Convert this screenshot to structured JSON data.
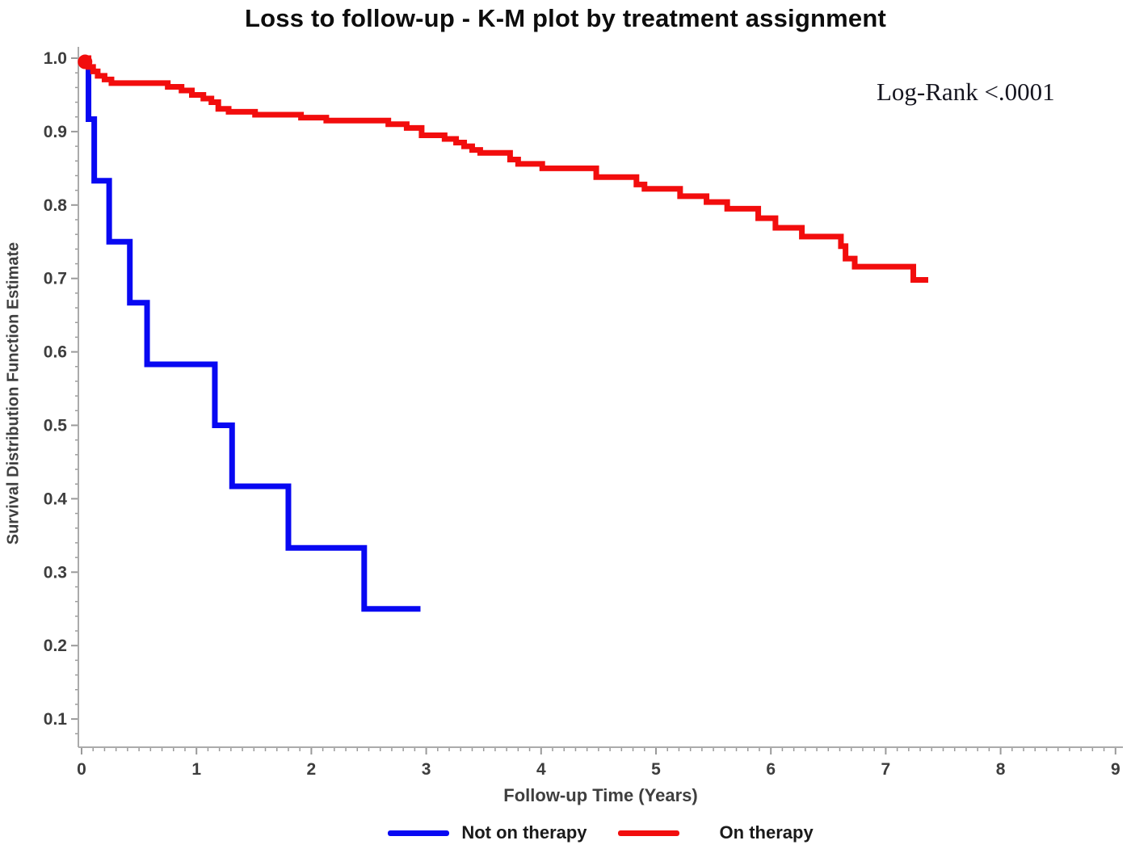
{
  "chart_data": {
    "type": "line",
    "subtype": "kaplan_meier_step",
    "title": "Loss to follow-up - K-M plot by treatment assignment",
    "xlabel": "Follow-up Time (Years)",
    "ylabel": "Survival Distribution Function Estimate",
    "annotation": "Log-Rank <.0001",
    "xlim": [
      0,
      9
    ],
    "ylim": [
      0.06,
      1.0
    ],
    "xticks": [
      "0",
      "1",
      "2",
      "3",
      "4",
      "5",
      "6",
      "7",
      "8",
      "9"
    ],
    "yticks": [
      "0.1",
      "0.2",
      "0.3",
      "0.4",
      "0.5",
      "0.6",
      "0.7",
      "0.8",
      "0.9",
      "1.0"
    ],
    "x_minor_step": 0.1,
    "y_minor_step": 0.02,
    "grid": false,
    "legend_position": "bottom",
    "series": [
      {
        "name": "Not on therapy",
        "color": "#0808F2",
        "end_x": 2.95,
        "start_marker": false,
        "steps": [
          [
            0.0,
            1.0
          ],
          [
            0.06,
            0.917
          ],
          [
            0.11,
            0.833
          ],
          [
            0.24,
            0.75
          ],
          [
            0.42,
            0.667
          ],
          [
            0.57,
            0.583
          ],
          [
            1.16,
            0.5
          ],
          [
            1.31,
            0.417
          ],
          [
            1.8,
            0.333
          ],
          [
            2.46,
            0.25
          ]
        ]
      },
      {
        "name": "On therapy",
        "color": "#F20D0D",
        "end_x": 7.37,
        "start_marker": true,
        "steps": [
          [
            0.0,
            1.0
          ],
          [
            0.06,
            0.988
          ],
          [
            0.1,
            0.982
          ],
          [
            0.14,
            0.976
          ],
          [
            0.2,
            0.971
          ],
          [
            0.26,
            0.966
          ],
          [
            0.75,
            0.961
          ],
          [
            0.87,
            0.956
          ],
          [
            0.96,
            0.95
          ],
          [
            1.06,
            0.945
          ],
          [
            1.13,
            0.94
          ],
          [
            1.19,
            0.931
          ],
          [
            1.28,
            0.927
          ],
          [
            1.51,
            0.923
          ],
          [
            1.91,
            0.919
          ],
          [
            2.13,
            0.915
          ],
          [
            2.67,
            0.91
          ],
          [
            2.83,
            0.905
          ],
          [
            2.96,
            0.895
          ],
          [
            3.16,
            0.89
          ],
          [
            3.26,
            0.885
          ],
          [
            3.33,
            0.88
          ],
          [
            3.4,
            0.875
          ],
          [
            3.47,
            0.871
          ],
          [
            3.73,
            0.862
          ],
          [
            3.8,
            0.856
          ],
          [
            4.01,
            0.85
          ],
          [
            4.48,
            0.838
          ],
          [
            4.83,
            0.828
          ],
          [
            4.9,
            0.822
          ],
          [
            5.21,
            0.812
          ],
          [
            5.44,
            0.804
          ],
          [
            5.62,
            0.795
          ],
          [
            5.89,
            0.782
          ],
          [
            6.04,
            0.769
          ],
          [
            6.27,
            0.757
          ],
          [
            6.61,
            0.744
          ],
          [
            6.65,
            0.727
          ],
          [
            6.73,
            0.716
          ],
          [
            7.24,
            0.698
          ]
        ]
      }
    ]
  }
}
